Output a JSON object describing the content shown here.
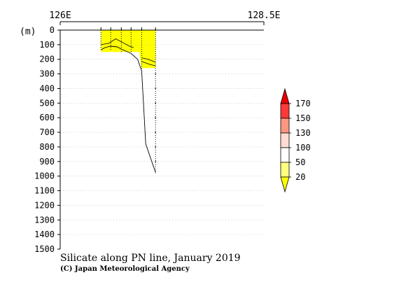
{
  "chart_data": {
    "type": "heatmap",
    "title": "Silicate along PN line, January 2019",
    "credit": "(C) Japan Meteorological Agency",
    "unit_label": "(m)",
    "x_tick_labels": [
      {
        "lon": 126.0,
        "label": "126E"
      },
      {
        "lon": 128.5,
        "label": "128.5E"
      }
    ],
    "xlim": [
      126.0,
      128.5
    ],
    "ylim": [
      0,
      1500
    ],
    "y_tick_values": [
      0,
      100,
      200,
      300,
      400,
      500,
      600,
      700,
      800,
      900,
      1000,
      1100,
      1200,
      1300,
      1400,
      1500
    ],
    "grid": true,
    "stations": [
      {
        "lon": 126.5,
        "max_depth": 130
      },
      {
        "lon": 126.62,
        "max_depth": 140
      },
      {
        "lon": 126.75,
        "max_depth": 150
      },
      {
        "lon": 126.87,
        "max_depth": 150
      },
      {
        "lon": 127.0,
        "max_depth": 270
      },
      {
        "lon": 127.17,
        "max_depth": 980
      }
    ],
    "filled_regions": [
      {
        "level": "20-50",
        "color": "#ffff00",
        "polygon": [
          [
            126.5,
            0
          ],
          [
            127.17,
            0
          ],
          [
            127.17,
            260
          ],
          [
            127.0,
            260
          ],
          [
            126.97,
            150
          ],
          [
            126.5,
            150
          ]
        ]
      }
    ],
    "bottom_profile": [
      [
        126.5,
        135
      ],
      [
        126.55,
        120
      ],
      [
        126.62,
        110
      ],
      [
        126.7,
        115
      ],
      [
        126.75,
        130
      ],
      [
        126.87,
        160
      ],
      [
        126.95,
        200
      ],
      [
        127.0,
        280
      ],
      [
        127.05,
        780
      ],
      [
        127.17,
        975
      ]
    ],
    "contours": [
      {
        "level": 50,
        "points": [
          [
            126.5,
            100
          ],
          [
            126.6,
            90
          ],
          [
            126.68,
            60
          ],
          [
            126.75,
            80
          ],
          [
            126.85,
            110
          ],
          [
            126.9,
            120
          ]
        ]
      },
      {
        "level": 50,
        "points": [
          [
            127.0,
            190
          ],
          [
            127.08,
            200
          ],
          [
            127.17,
            220
          ]
        ]
      },
      {
        "level": 50,
        "points": [
          [
            127.0,
            215
          ],
          [
            127.1,
            235
          ],
          [
            127.17,
            245
          ]
        ]
      }
    ],
    "legend": {
      "levels": [
        "20",
        "50",
        "100",
        "130",
        "150",
        "170"
      ],
      "colors": [
        "#ffff00",
        "#ffff80",
        "#ffffff",
        "#ffdcd2",
        "#ff9680",
        "#ff3838",
        "#e80000"
      ]
    }
  }
}
